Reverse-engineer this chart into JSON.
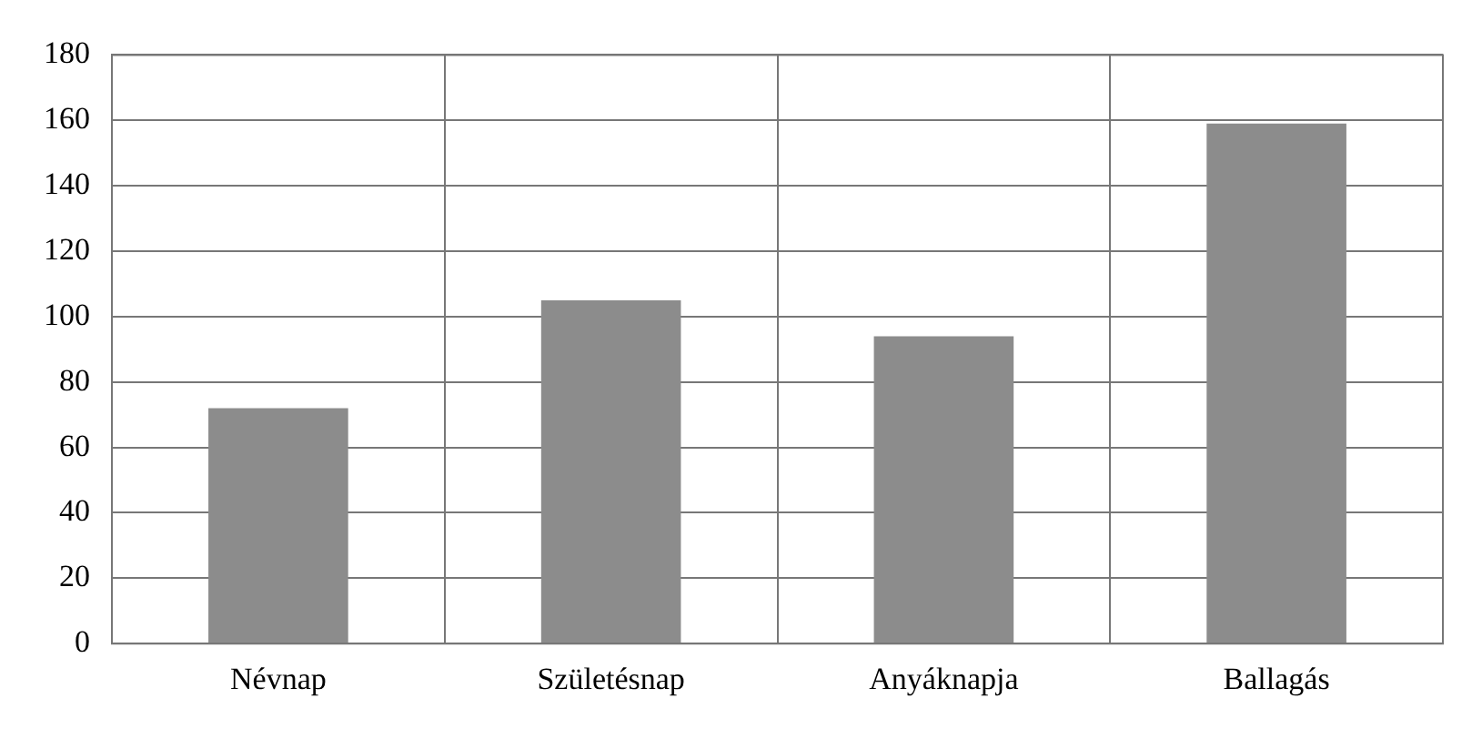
{
  "chart_data": {
    "type": "bar",
    "categories": [
      "Névnap",
      "Születésnap",
      "Anyáknapja",
      "Ballagás"
    ],
    "values": [
      72,
      105,
      94,
      159
    ],
    "color": "#8c8c8c",
    "ylim": [
      0,
      180
    ],
    "yticks": [
      0,
      20,
      40,
      60,
      80,
      100,
      120,
      140,
      160,
      180
    ],
    "grid": true
  }
}
